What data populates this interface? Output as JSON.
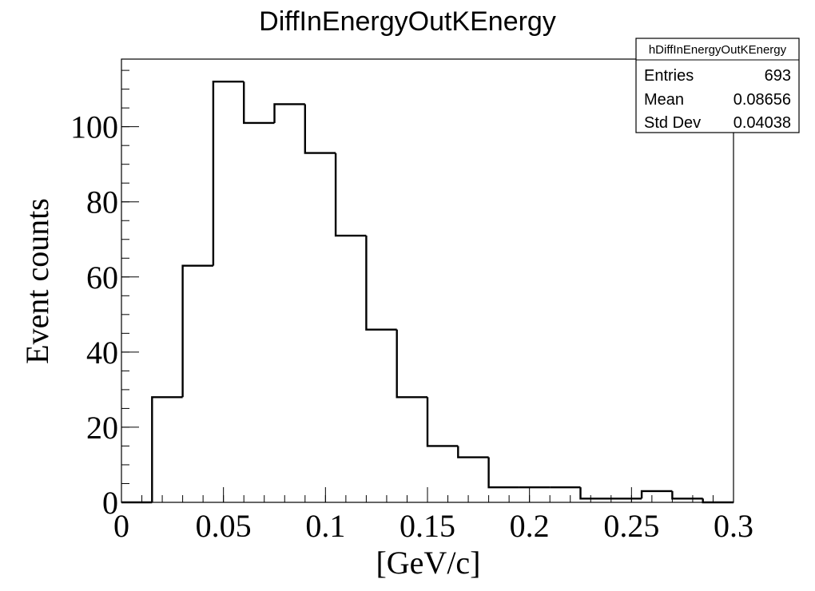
{
  "chart_data": {
    "type": "bar",
    "title": "DiffInEnergyOutKEnergy",
    "xlabel": "[GeV/c]",
    "ylabel": "Event counts",
    "xlim": [
      0,
      0.3
    ],
    "ylim": [
      0,
      118
    ],
    "bin_edges": [
      0,
      0.015,
      0.03,
      0.045,
      0.06,
      0.075,
      0.09,
      0.105,
      0.12,
      0.135,
      0.15,
      0.165,
      0.18,
      0.195,
      0.21,
      0.225,
      0.24,
      0.255,
      0.27,
      0.285,
      0.3
    ],
    "values": [
      0,
      28,
      63,
      112,
      101,
      106,
      93,
      71,
      46,
      28,
      15,
      12,
      4,
      4,
      4,
      1,
      1,
      3,
      1,
      0
    ],
    "x_ticks": [
      {
        "value": 0,
        "label": "0"
      },
      {
        "value": 0.05,
        "label": "0.05"
      },
      {
        "value": 0.1,
        "label": "0.1"
      },
      {
        "value": 0.15,
        "label": "0.15"
      },
      {
        "value": 0.2,
        "label": "0.2"
      },
      {
        "value": 0.25,
        "label": "0.25"
      },
      {
        "value": 0.3,
        "label": "0.3"
      }
    ],
    "y_ticks": [
      {
        "value": 0,
        "label": "0"
      },
      {
        "value": 20,
        "label": "20"
      },
      {
        "value": 40,
        "label": "40"
      },
      {
        "value": 60,
        "label": "60"
      },
      {
        "value": 80,
        "label": "80"
      },
      {
        "value": 100,
        "label": "100"
      }
    ],
    "x_minor_step": 0.01,
    "y_minor_step": 5,
    "grid": false,
    "stats_box": {
      "name": "hDiffInEnergyOutKEnergy",
      "placement": "top-right",
      "rows": [
        {
          "label": "Entries",
          "value": "693"
        },
        {
          "label": "Mean",
          "value": "0.08656"
        },
        {
          "label": "Std Dev",
          "value": "0.04038"
        }
      ]
    }
  }
}
